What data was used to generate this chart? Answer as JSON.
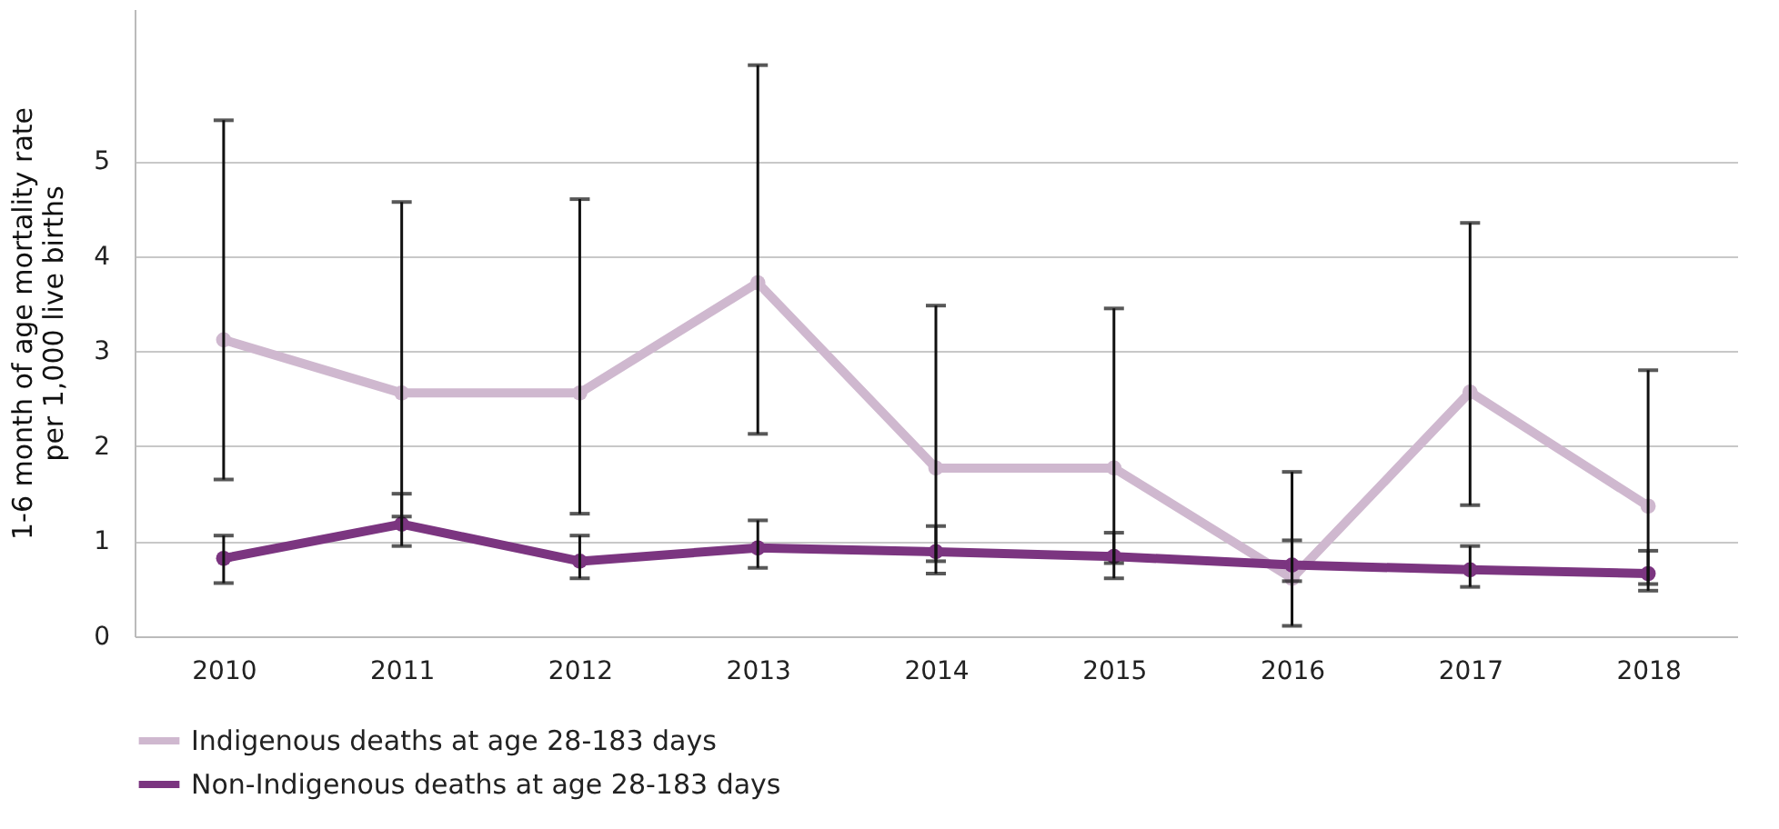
{
  "chart_data": {
    "type": "line",
    "ylabel": "1-6 month of age mortality rate\nper 1,000 live births",
    "categories": [
      "2010",
      "2011",
      "2012",
      "2013",
      "2014",
      "2015",
      "2016",
      "2017",
      "2018"
    ],
    "series": [
      {
        "name": "Indigenous deaths at age 28-183 days",
        "color": "#cfb8cf",
        "values": [
          3.12,
          2.56,
          2.56,
          3.72,
          1.77,
          1.77,
          0.61,
          2.57,
          1.37
        ],
        "errors": [
          [
            1.65,
            5.43
          ],
          [
            1.26,
            4.57
          ],
          [
            1.29,
            4.6
          ],
          [
            2.13,
            6.01
          ],
          [
            0.79,
            3.48
          ],
          [
            0.77,
            3.45
          ],
          [
            0.11,
            1.73
          ],
          [
            1.38,
            4.35
          ],
          [
            0.55,
            2.8
          ]
        ]
      },
      {
        "name": "Non-Indigenous deaths at age 28-183 days",
        "color": "#7b3580",
        "values": [
          0.82,
          1.18,
          0.79,
          0.93,
          0.89,
          0.84,
          0.75,
          0.7,
          0.66
        ],
        "errors": [
          [
            0.56,
            1.06
          ],
          [
            0.95,
            1.5
          ],
          [
            0.61,
            1.06
          ],
          [
            0.72,
            1.22
          ],
          [
            0.66,
            1.16
          ],
          [
            0.61,
            1.09
          ],
          [
            0.58,
            1.01
          ],
          [
            0.52,
            0.95
          ],
          [
            0.48,
            0.9
          ]
        ]
      }
    ],
    "ylim": [
      0,
      6.6
    ],
    "yticks": [
      0,
      1,
      2,
      3,
      4,
      5
    ],
    "grid": "y",
    "legend": "bottom",
    "marker": "circle",
    "line_style": "solid"
  }
}
